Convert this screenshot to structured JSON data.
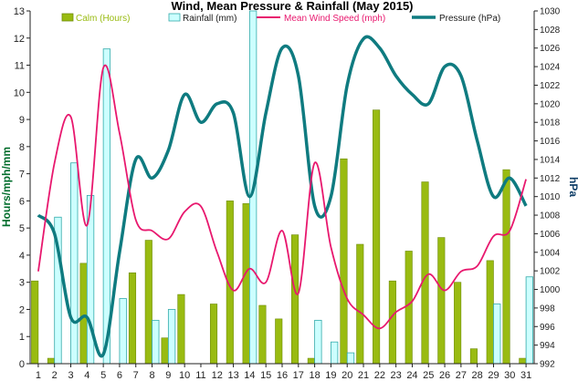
{
  "chart_data": {
    "type": "bar",
    "title": "Wind, Mean Pressure & Rainfall (May 2015)",
    "categories": [
      "1",
      "2",
      "3",
      "4",
      "5",
      "6",
      "7",
      "8",
      "9",
      "10",
      "11",
      "12",
      "13",
      "14",
      "15",
      "16",
      "17",
      "18",
      "19",
      "20",
      "21",
      "22",
      "23",
      "24",
      "25",
      "26",
      "27",
      "28",
      "29",
      "30",
      "31"
    ],
    "ylabel": "Hours/mph/mm",
    "y2label": "hPa",
    "ylim": [
      0,
      13
    ],
    "yticks": [
      0,
      1,
      2,
      3,
      4,
      5,
      6,
      7,
      8,
      9,
      10,
      11,
      12,
      13
    ],
    "y2lim": [
      992,
      1030
    ],
    "y2ticks": [
      992,
      994,
      996,
      998,
      1000,
      1002,
      1004,
      1006,
      1008,
      1010,
      1012,
      1014,
      1016,
      1018,
      1020,
      1022,
      1024,
      1026,
      1028,
      1030
    ],
    "grid": false,
    "legend_position": "top",
    "series": [
      {
        "name": "Calm (Hours)",
        "kind": "bar",
        "axis": "left",
        "color": "#99bb11",
        "values": [
          3.05,
          0.2,
          0,
          3.7,
          0,
          0,
          3.35,
          4.55,
          0.95,
          2.55,
          0,
          2.2,
          6.0,
          5.9,
          2.15,
          1.65,
          4.75,
          0.2,
          0,
          7.55,
          4.4,
          9.35,
          3.05,
          4.15,
          6.7,
          4.65,
          3.0,
          0.55,
          3.8,
          7.15,
          0.2
        ]
      },
      {
        "name": "Rainfall (mm)",
        "kind": "bar",
        "axis": "left",
        "color": "#ccffff",
        "border": "#33aaaa",
        "values": [
          0,
          5.4,
          7.4,
          6.2,
          11.6,
          2.4,
          0,
          1.6,
          2.0,
          0,
          0,
          0,
          0,
          13.0,
          0,
          0,
          0,
          1.6,
          0.8,
          0.4,
          0,
          0,
          0,
          0,
          0,
          0,
          0,
          0,
          2.2,
          0,
          3.2
        ]
      },
      {
        "name": "Mean Wind Speed (mph)",
        "kind": "line",
        "axis": "left",
        "color": "#e8186e",
        "values": [
          3.4,
          7.4,
          9.1,
          5.1,
          10.9,
          8.5,
          5.3,
          4.9,
          4.6,
          5.6,
          5.8,
          4.1,
          2.7,
          3.5,
          3.0,
          4.9,
          2.6,
          7.4,
          4.3,
          2.4,
          1.8,
          1.3,
          1.9,
          2.3,
          3.3,
          2.7,
          3.4,
          3.6,
          4.7,
          4.9,
          6.8
        ]
      },
      {
        "name": "Pressure (hPa)",
        "kind": "line",
        "axis": "right",
        "color": "#0f7b80",
        "values": [
          1008,
          1006,
          997,
          997,
          993,
          1004,
          1014,
          1012,
          1015,
          1021,
          1018,
          1020,
          1019,
          1010,
          1019,
          1026,
          1023,
          1009,
          1010,
          1022,
          1027,
          1026,
          1023,
          1021,
          1020,
          1024,
          1023,
          1016,
          1010,
          1012,
          1009
        ]
      }
    ]
  }
}
